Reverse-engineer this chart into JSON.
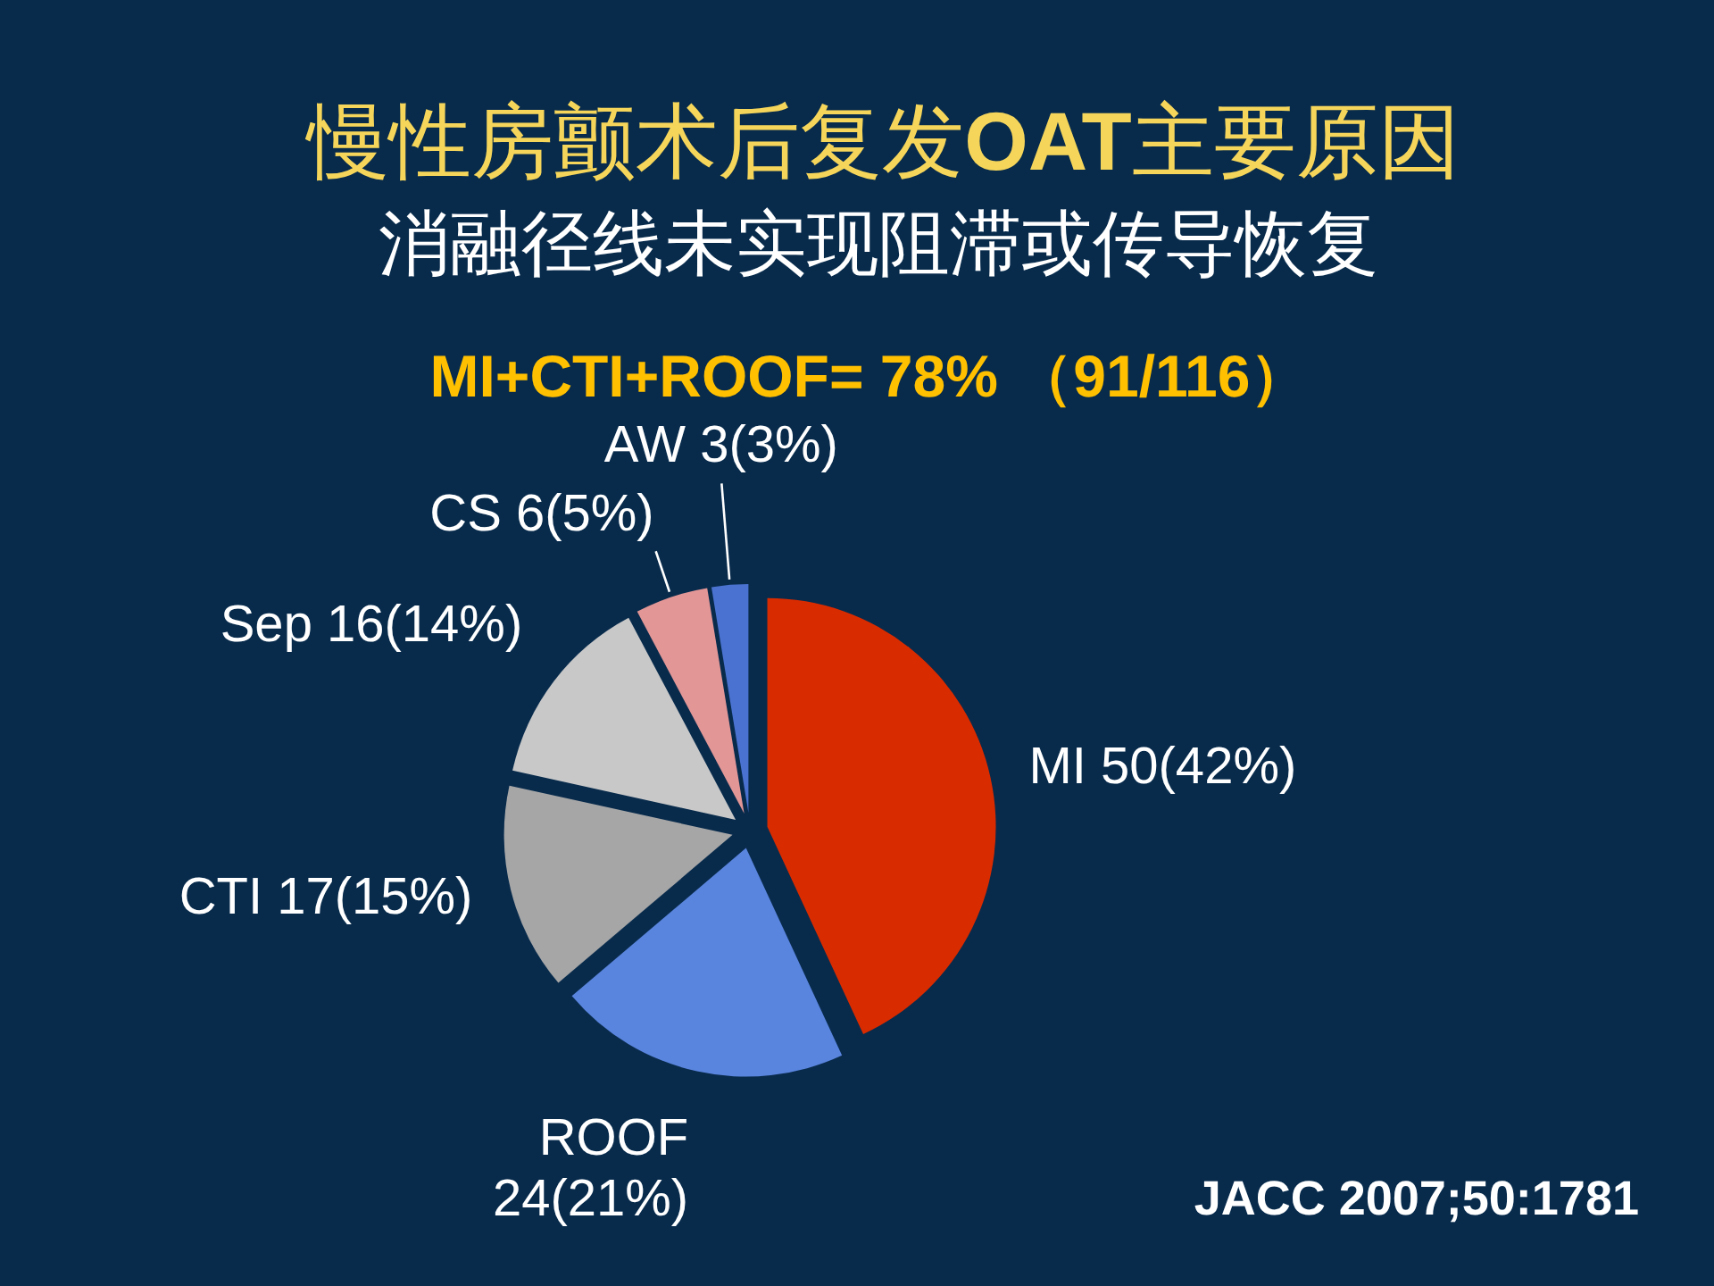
{
  "chart_data": {
    "type": "pie",
    "title": "慢性房颤术后复发**OAT**主要原因",
    "subtitle": "消融径线未实现阻滞或传导恢复",
    "categories": [
      "MI",
      "ROOF",
      "CTI",
      "Sep",
      "CS",
      "AW"
    ],
    "values": [
      50,
      24,
      17,
      16,
      6,
      3
    ],
    "value_labels": [
      "50(42%)",
      "24(21%)",
      "17(15%)",
      "16(14%)",
      "6(5%)",
      "3(3%)"
    ],
    "colors": [
      "#d92b00",
      "#5a85de",
      "#a6a6a6",
      "#c8c8c8",
      "#e29696",
      "#4a72d0"
    ],
    "annotations": [
      "MI+CTI+ROOF= 78% （91/116）",
      "JACC 2007;50:1781"
    ]
  }
}
